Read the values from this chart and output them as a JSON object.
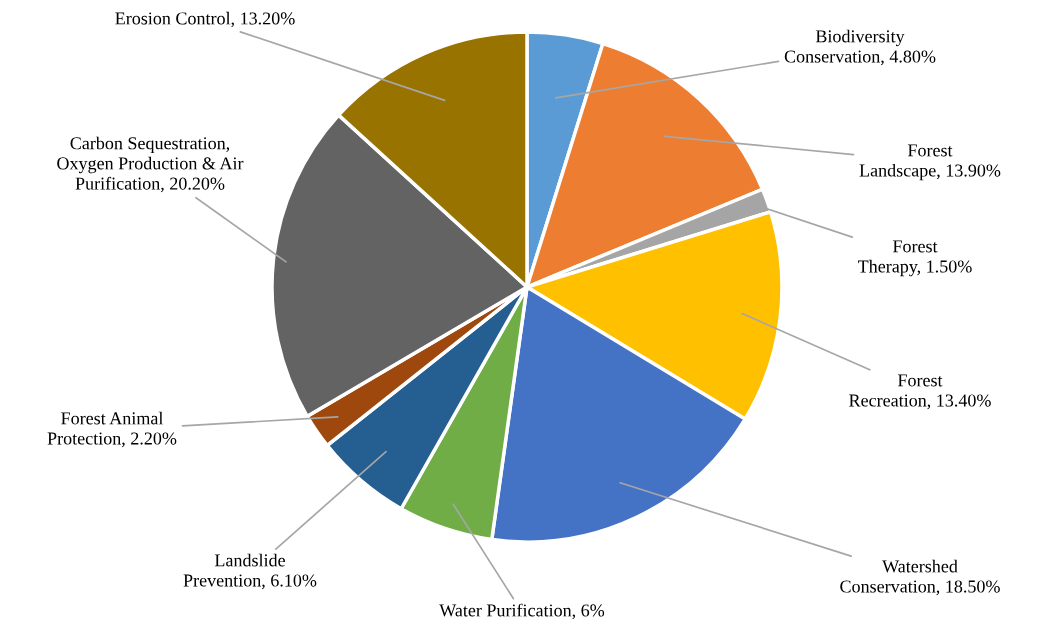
{
  "chart_data": {
    "type": "pie",
    "categories": [
      "Biodiversity Conservation",
      "Forest Landscape",
      "Forest Therapy",
      "Forest Recreation",
      "Watershed Conservation",
      "Water Purification",
      "Landslide Prevention",
      "Forest Animal Protection",
      "Carbon Sequestration, Oxygen Production & Air Purification",
      "Erosion Control"
    ],
    "values": [
      4.8,
      13.9,
      1.5,
      13.4,
      18.5,
      6,
      6.1,
      2.2,
      20.2,
      13.2
    ],
    "value_labels": [
      "4.80%",
      "13.90%",
      "1.50%",
      "13.40%",
      "18.50%",
      "6%",
      "6.10%",
      "2.20%",
      "20.20%",
      "13.20%"
    ],
    "colors": [
      "#5b9bd5",
      "#ed7d31",
      "#a5a5a5",
      "#ffc000",
      "#4472c4",
      "#70ad47",
      "#255e91",
      "#9e480e",
      "#636363",
      "#997300"
    ],
    "legend": false
  }
}
